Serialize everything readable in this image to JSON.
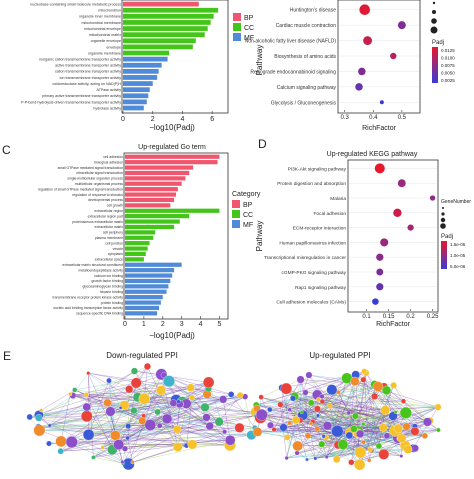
{
  "colors": {
    "bp": "#f0566d",
    "cc": "#44c51a",
    "mf": "#4f8bd6",
    "padj_low": "#e8182c",
    "padj_high": "#3a3ad8",
    "ppi_edge": "#7a3fa8"
  },
  "panels": {
    "c_letter": "C",
    "d_letter": "D",
    "e_letter": "E"
  },
  "chart_data": [
    {
      "type": "bar",
      "panel": "A",
      "orientation": "horizontal",
      "title": "",
      "xlabel": "−log10(Padj)",
      "ylabel": "",
      "xlim": [
        0,
        7
      ],
      "xticks": [
        "0",
        "2",
        "4",
        "6"
      ],
      "legend": {
        "position": "right",
        "entries": [
          "BP",
          "CC",
          "MF"
        ]
      },
      "categories": [
        "nucleobase-containing small molecule metabolic process",
        "mitochondrion",
        "organelle inner membrane",
        "mitochondrial membrane",
        "mitochondrial envelope",
        "mitochondrial matrix",
        "organelle envelope",
        "envelope",
        "organelle membrane",
        "inorganic cation transmembrane transporter activity",
        "active transmembrane transporter activity",
        "cation transmembrane transporter activity",
        "ion transmembrane transporter activity",
        "oxidoreductase activity, acting on NAD(P)H",
        "ATPase activity",
        "primary active transmembrane transporter activity",
        "P-P-bond-hydrolysis-driven transmembrane transporter activity",
        "hydrolase activity"
      ],
      "groups": [
        "BP",
        "CC",
        "CC",
        "CC",
        "CC",
        "CC",
        "CC",
        "CC",
        "CC",
        "MF",
        "MF",
        "MF",
        "MF",
        "MF",
        "MF",
        "MF",
        "MF",
        "MF"
      ],
      "values": [
        5.1,
        6.4,
        6.1,
        5.9,
        5.7,
        5.5,
        4.9,
        4.7,
        3.1,
        3.0,
        2.6,
        2.4,
        2.3,
        2.0,
        1.8,
        1.7,
        1.6,
        1.4
      ]
    },
    {
      "type": "scatter",
      "panel": "B",
      "title": "",
      "xlabel": "RichFactor",
      "ylabel": "Pathway",
      "xlim": [
        0.28,
        0.56
      ],
      "xticks": [
        "0.3",
        "0.4",
        "0.5"
      ],
      "categories": [
        "Huntington's disease",
        "Cardiac muscle contraction",
        "Non-alcoholic fatty liver disease (NAFLD)",
        "Biosynthesis of amino acids",
        "Retrograde endocannabinoid signaling",
        "Calcium signaling pathway",
        "Glycolysis / Gluconeogenesis"
      ],
      "x": [
        0.37,
        0.5,
        0.38,
        0.47,
        0.36,
        0.35,
        0.43
      ],
      "size": [
        70,
        35,
        45,
        20,
        30,
        30,
        5
      ],
      "padj": [
        0.001,
        0.012,
        0.004,
        0.006,
        0.012,
        0.015,
        0.02
      ],
      "legend_size_title": "",
      "legend_size_values": [
        "",
        "",
        "",
        ""
      ],
      "legend_color_title": "Padj",
      "legend_color_ticks": [
        "0.0125",
        "0.0100",
        "0.0075",
        "0.0050",
        "0.0025"
      ]
    },
    {
      "type": "bar",
      "panel": "C",
      "orientation": "horizontal",
      "title": "Up-regulated Go term",
      "xlabel": "−log10(Padj)",
      "ylabel": "",
      "xlim": [
        0,
        5.4
      ],
      "xticks": [
        "0",
        "1",
        "2",
        "3",
        "4",
        "5"
      ],
      "legend": {
        "position": "right",
        "title": "Category",
        "entries": [
          "BP",
          "CC",
          "MF"
        ]
      },
      "categories": [
        "cell adhesion",
        "biological adhesion",
        "small GTPase mediated signal transduction",
        "intracellular signal transduction",
        "single-multicellular organism process",
        "multicellular organismal process",
        "regulation of small GTPase mediated signal transduction",
        "regulation of response to stimulus",
        "developmental process",
        "cell growth",
        "extracellular region",
        "extracellular region part",
        "proteinaceous extracellular matrix",
        "extracellular matrix",
        "cell periphery",
        "plasma membrane",
        "cell junction",
        "vesicle",
        "cytoplasm",
        "extracellular space",
        "extracellular matrix structural constituent",
        "metalloendopeptidase activity",
        "calcium ion binding",
        "growth factor binding",
        "glycosaminoglycan binding",
        "heparin binding",
        "transmembrane receptor protein kinase activity",
        "protein binding",
        "nucleic acid binding transcription factor activity",
        "sequence-specific DNA binding"
      ],
      "groups": [
        "BP",
        "BP",
        "BP",
        "BP",
        "BP",
        "BP",
        "BP",
        "BP",
        "BP",
        "BP",
        "CC",
        "CC",
        "CC",
        "CC",
        "CC",
        "CC",
        "CC",
        "CC",
        "CC",
        "CC",
        "MF",
        "MF",
        "MF",
        "MF",
        "MF",
        "MF",
        "MF",
        "MF",
        "MF",
        "MF"
      ],
      "values": [
        5.0,
        4.9,
        3.6,
        3.4,
        3.2,
        3.0,
        2.8,
        2.7,
        2.6,
        2.4,
        5.0,
        3.4,
        2.9,
        2.6,
        1.6,
        1.5,
        1.3,
        1.2,
        1.1,
        1.0,
        3.0,
        2.6,
        2.5,
        2.4,
        2.3,
        2.2,
        2.0,
        1.9,
        1.8,
        1.7
      ]
    },
    {
      "type": "scatter",
      "panel": "D",
      "title": "Up-regulated KEGG pathway",
      "xlabel": "RichFactor",
      "ylabel": "Pathway",
      "xlim": [
        0.06,
        0.26
      ],
      "xticks": [
        "0.1",
        "0.15",
        "0.2",
        "0.25"
      ],
      "categories": [
        "PI3K-Akt signaling pathway",
        "Protein digestion and absorption",
        "Malaria",
        "Focal adhesion",
        "ECM-receptor interaction",
        "Human papillomavirus infection",
        "Transcriptional misregulation in cancer",
        "cGMP-PKG signaling pathway",
        "Rap1 signaling pathway",
        "Cell adhesion molecules (CAMs)"
      ],
      "x": [
        0.13,
        0.18,
        0.25,
        0.17,
        0.2,
        0.14,
        0.13,
        0.13,
        0.13,
        0.12
      ],
      "size": [
        40,
        22,
        8,
        26,
        12,
        24,
        18,
        16,
        18,
        14
      ],
      "padj": [
        2e-07,
        8e-07,
        9e-07,
        4e-07,
        7e-07,
        8e-07,
        9e-07,
        1e-06,
        1.2e-06,
        1.5e-06
      ],
      "legend_size_title": "GeneNumber",
      "legend_size_values": [
        "",
        "",
        "",
        ""
      ],
      "legend_color_title": "Padj",
      "legend_color_ticks": [
        "1.5e-05",
        "1.0e-05",
        "5.0e-06"
      ]
    }
  ],
  "ppi": {
    "down_title": "Down-regulated PPI",
    "up_title": "Up-regulated PPI"
  }
}
